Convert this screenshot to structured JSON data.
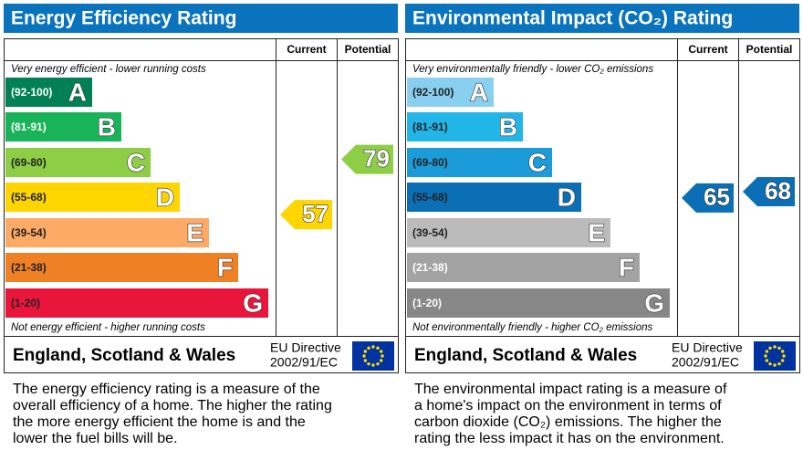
{
  "panels": [
    {
      "title": "Energy Efficiency Rating",
      "col_current": "Current",
      "col_potential": "Potential",
      "top_note": "Very energy efficient - lower running costs",
      "bottom_note": "Not energy efficient - higher running costs",
      "bands": [
        {
          "range": "(92-100)",
          "letter": "A",
          "color": "#008054",
          "label_color": "#ffffff"
        },
        {
          "range": "(81-91)",
          "letter": "B",
          "color": "#19b459",
          "label_color": "#ffffff"
        },
        {
          "range": "(69-80)",
          "letter": "C",
          "color": "#8dce46",
          "label_color": "#222222"
        },
        {
          "range": "(55-68)",
          "letter": "D",
          "color": "#ffd500",
          "label_color": "#222222"
        },
        {
          "range": "(39-54)",
          "letter": "E",
          "color": "#fcaa65",
          "label_color": "#222222"
        },
        {
          "range": "(21-38)",
          "letter": "F",
          "color": "#ef8023",
          "label_color": "#222222"
        },
        {
          "range": "(1-20)",
          "letter": "G",
          "color": "#e9153b",
          "label_color": "#222222"
        }
      ],
      "current": 57,
      "potential": 79,
      "region": "England, Scotland & Wales",
      "directive": "EU Directive",
      "directive_code": "2002/91/EC",
      "description": [
        "The energy efficiency rating is a measure of the",
        "overall efficiency of a home. The higher the rating",
        "the more energy efficient the home is and the",
        "lower the fuel bills will be."
      ]
    },
    {
      "title": "Environmental Impact (CO₂) Rating",
      "col_current": "Current",
      "col_potential": "Potential",
      "top_note": "Very environmentally friendly - lower CO₂ emissions",
      "bottom_note": "Not environmentally friendly - higher CO₂ emissions",
      "bands": [
        {
          "range": "(92-100)",
          "letter": "A",
          "color": "#88cff0",
          "label_color": "#222222"
        },
        {
          "range": "(81-91)",
          "letter": "B",
          "color": "#22b5e8",
          "label_color": "#222222"
        },
        {
          "range": "(69-80)",
          "letter": "C",
          "color": "#1b9bd8",
          "label_color": "#222222"
        },
        {
          "range": "(55-68)",
          "letter": "D",
          "color": "#0a6fb5",
          "label_color": "#222222"
        },
        {
          "range": "(39-54)",
          "letter": "E",
          "color": "#bbbbbb",
          "label_color": "#222222"
        },
        {
          "range": "(21-38)",
          "letter": "F",
          "color": "#a3a3a3",
          "label_color": "#ffffff"
        },
        {
          "range": "(1-20)",
          "letter": "G",
          "color": "#878787",
          "label_color": "#ffffff"
        }
      ],
      "current": 65,
      "potential": 68,
      "region": "England, Scotland & Wales",
      "directive": "EU Directive",
      "directive_code": "2002/91/EC",
      "description": [
        "The environmental impact rating is a measure of",
        "a home's impact on the environment in terms of",
        "carbon dioxide (CO₂) emissions. The higher the",
        "rating the less impact it has on the environment."
      ]
    }
  ]
}
